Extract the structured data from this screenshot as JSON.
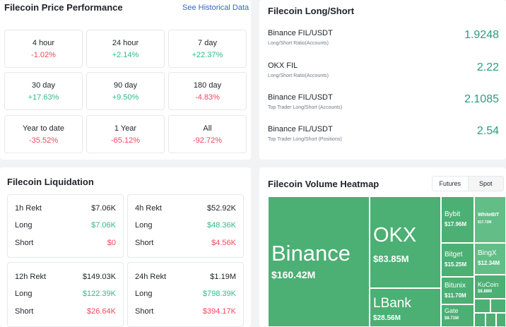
{
  "performance": {
    "title": "Filecoin Price Performance",
    "link": "See Historical Data",
    "cells": [
      {
        "label": "4 hour",
        "value": "-1.02%",
        "dir": "red"
      },
      {
        "label": "24 hour",
        "value": "+2.14%",
        "dir": "green"
      },
      {
        "label": "7 day",
        "value": "+22.37%",
        "dir": "green"
      },
      {
        "label": "30 day",
        "value": "+17.63%",
        "dir": "green"
      },
      {
        "label": "90 day",
        "value": "+9.50%",
        "dir": "green"
      },
      {
        "label": "180 day",
        "value": "-4.83%",
        "dir": "red"
      },
      {
        "label": "Year to date",
        "value": "-35.52%",
        "dir": "red"
      },
      {
        "label": "1 Year",
        "value": "-65.12%",
        "dir": "red"
      },
      {
        "label": "All",
        "value": "-92.72%",
        "dir": "red"
      }
    ]
  },
  "longshort": {
    "title": "Filecoin Long/Short",
    "rows": [
      {
        "name": "Binance FIL/USDT",
        "sub": "Long/Short Ratio(Accounts)",
        "value": "1.9248"
      },
      {
        "name": "OKX FIL",
        "sub": "Long/Short Ratio(Accounts)",
        "value": "2.22"
      },
      {
        "name": "Binance FIL/USDT",
        "sub": "Top Trader Long/Short (Accounts)",
        "value": "2.1085"
      },
      {
        "name": "Binance FIL/USDT",
        "sub": "Top Trader Long/Short (Positions)",
        "value": "2.54"
      }
    ]
  },
  "liquidation": {
    "title": "Filecoin Liquidation",
    "boxes": [
      {
        "rekt_label": "1h Rekt",
        "rekt": "$7.06K",
        "long_label": "Long",
        "long": "$7.06K",
        "short_label": "Short",
        "short": "$0"
      },
      {
        "rekt_label": "4h Rekt",
        "rekt": "$52.92K",
        "long_label": "Long",
        "long": "$48.36K",
        "short_label": "Short",
        "short": "$4.56K"
      },
      {
        "rekt_label": "12h Rekt",
        "rekt": "$149.03K",
        "long_label": "Long",
        "long": "$122.39K",
        "short_label": "Short",
        "short": "$26.64K"
      },
      {
        "rekt_label": "24h Rekt",
        "rekt": "$1.19M",
        "long_label": "Long",
        "long": "$798.39K",
        "short_label": "Short",
        "short": "$394.17K"
      }
    ]
  },
  "heatmap": {
    "title": "Filecoin Volume Heatmap",
    "tabs": [
      "Futures",
      "Spot"
    ],
    "active_tab": "Futures",
    "color": "#4caf74",
    "tiles": [
      {
        "name": "Binance",
        "value": "$160.42M"
      },
      {
        "name": "OKX",
        "value": "$83.85M"
      },
      {
        "name": "LBank",
        "value": "$28.56M"
      },
      {
        "name": "Bybit",
        "value": "$17.96M"
      },
      {
        "name": "WhiteBIT",
        "value": "$17.72M"
      },
      {
        "name": "Bitget",
        "value": "$15.25M"
      },
      {
        "name": "BingX",
        "value": "$12.34M"
      },
      {
        "name": "Bitunix",
        "value": "$11.70M"
      },
      {
        "name": "KuCoin",
        "value": "$8.88M"
      },
      {
        "name": "Gate",
        "value": "$8.71M"
      }
    ]
  }
}
